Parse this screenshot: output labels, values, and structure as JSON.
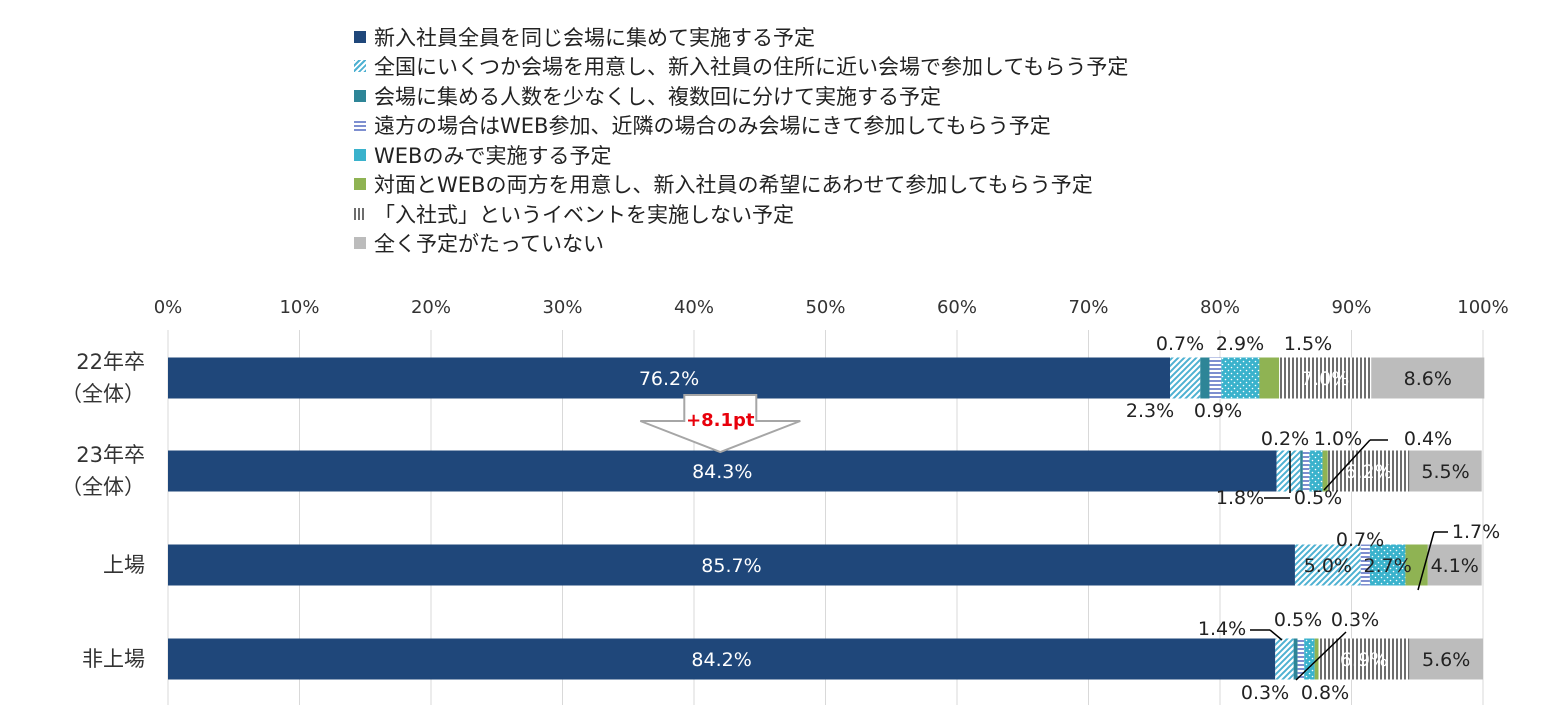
{
  "chart_data": {
    "type": "bar",
    "stacked": true,
    "orientation": "horizontal",
    "categories": [
      "22年卒\n（全体）",
      "23年卒\n（全体）",
      "上場",
      "非上場"
    ],
    "xlim": [
      0,
      100
    ],
    "x_ticks": [
      "0%",
      "10%",
      "20%",
      "30%",
      "40%",
      "50%",
      "60%",
      "70%",
      "80%",
      "90%",
      "100%"
    ],
    "grid": true,
    "legend_position": "top",
    "series": [
      {
        "name": "新入社員全員を同じ会場に集めて実施する予定",
        "color": "#1f477a",
        "pattern": "solid",
        "values": [
          76.2,
          84.3,
          85.7,
          84.2
        ]
      },
      {
        "name": "全国にいくつか会場を用意し、新入社員の住所に近い会場で参加してもらう予定",
        "color": "#4eb1d2",
        "pattern": "diagonal",
        "values": [
          2.3,
          1.8,
          5.0,
          1.4
        ]
      },
      {
        "name": "会場に集める人数を少なくし、複数回に分けて実施する予定",
        "color": "#2e8597",
        "pattern": "solid",
        "values": [
          0.7,
          0.2,
          0.0,
          0.3
        ]
      },
      {
        "name": "遠方の場合はWEB参加、近隣の場合のみ会場にきて参加してもらう予定",
        "color": "#7e8fd0",
        "pattern": "horizontal",
        "values": [
          0.9,
          0.5,
          0.7,
          0.5
        ]
      },
      {
        "name": "WEBのみで実施する予定",
        "color": "#3ab2cc",
        "pattern": "dots",
        "values": [
          2.9,
          1.0,
          2.7,
          0.8
        ]
      },
      {
        "name": "対面とWEBの両方を用意し、新入社員の希望にあわせて参加してもらう予定",
        "color": "#8fb353",
        "pattern": "solid",
        "values": [
          1.5,
          0.4,
          1.7,
          0.3
        ]
      },
      {
        "name": "「入社式」というイベントを実施しない予定",
        "color": "#6d6d6d",
        "pattern": "vertical",
        "values": [
          7.0,
          6.2,
          0.0,
          6.9
        ]
      },
      {
        "name": "全く予定がたっていない",
        "color": "#bcbcbc",
        "pattern": "solid",
        "values": [
          8.6,
          5.5,
          4.1,
          5.6
        ]
      }
    ],
    "labels": [
      [
        "76.2%",
        "2.3%",
        "0.7%",
        "0.9%",
        "2.9%",
        "1.5%",
        "7.0%",
        "8.6%"
      ],
      [
        "84.3%",
        "1.8%",
        "0.2%",
        "0.5%",
        "1.0%",
        "0.4%",
        "6.2%",
        "5.5%"
      ],
      [
        "85.7%",
        "5.0%",
        "",
        "0.7%",
        "2.7%",
        "1.7%",
        "",
        "4.1%"
      ],
      [
        "84.2%",
        "1.4%",
        "0.3%",
        "0.5%",
        "0.8%",
        "0.3%",
        "6.9%",
        "5.6%"
      ]
    ],
    "annotation": {
      "text": "+8.1pt",
      "color": "#e8000b"
    }
  }
}
